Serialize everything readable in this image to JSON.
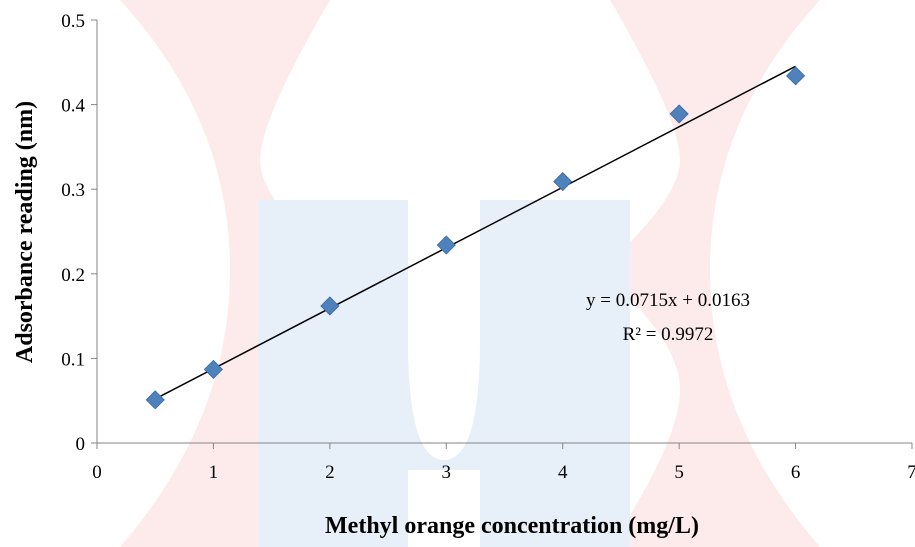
{
  "chart_data": {
    "type": "scatter",
    "xlabel": "Methyl orange concentration  (mg/L)",
    "ylabel": "Adsorbance  reading  (nm)",
    "xlim": [
      0,
      7
    ],
    "ylim": [
      0,
      0.5
    ],
    "x_ticks": [
      "0",
      "1",
      "2",
      "3",
      "4",
      "5",
      "6",
      "7"
    ],
    "y_ticks": [
      "0",
      "0.1",
      "0.2",
      "0.3",
      "0.4",
      "0.5"
    ],
    "grid": false,
    "marker": "diamond",
    "marker_color": "#4f81bd",
    "points": [
      {
        "x": 0.5,
        "y": 0.051
      },
      {
        "x": 1,
        "y": 0.087
      },
      {
        "x": 2,
        "y": 0.162
      },
      {
        "x": 3,
        "y": 0.234
      },
      {
        "x": 4,
        "y": 0.309
      },
      {
        "x": 5,
        "y": 0.389
      },
      {
        "x": 6,
        "y": 0.434
      }
    ],
    "trendline": {
      "slope": 0.0715,
      "intercept": 0.0163,
      "x_range": [
        0.5,
        6
      ],
      "color": "#000000",
      "equation": "y = 0.0715x  + 0.0163",
      "r_squared": "R² = 0.9972"
    }
  },
  "watermark": {
    "red": "#ef5a57",
    "blue": "#3f86c8"
  }
}
